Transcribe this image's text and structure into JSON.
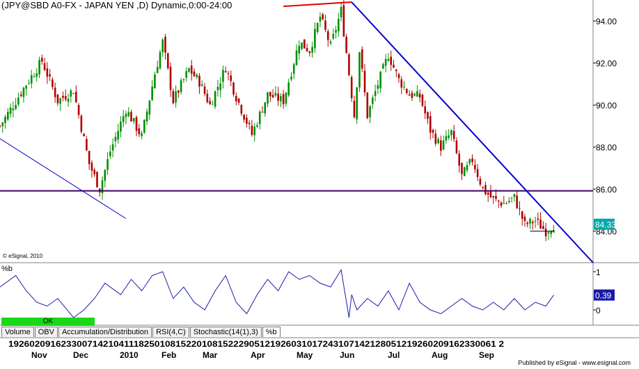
{
  "window": {
    "title": "(JPY@SBD A0-FX - JAPAN YEN  ,D) Dynamic,0:00-24:00"
  },
  "watermark": "© eSignal, 2010",
  "indicator": {
    "label": "%b",
    "ok_button": "OK",
    "tabs": [
      "Volume",
      "OBV",
      "Accumulation/Distribution",
      "RSI(4,C)",
      "Stochastic(14(1),3)",
      "%b"
    ],
    "active_tab": "%b",
    "last_value": "0.39",
    "ticks": [
      "1",
      "0"
    ]
  },
  "footer": "Published by eSignal - www.esignal.com",
  "colors": {
    "up": "#009000",
    "down": "#b00000",
    "trend_lines": "#0000cc",
    "top_line": "#e00000",
    "horizontal_line": "#3b005f",
    "last_price_box": "#00a8a8",
    "indicator_line": "#1a1aaa"
  },
  "chart_data": [
    {
      "type": "candlestick",
      "title": "(JPY@SBD A0-FX - JAPAN YEN  ,D) Dynamic,0:00-24:00",
      "ylim": [
        82.5,
        95.0
      ],
      "yticks": [
        "84.00",
        "86.00",
        "88.00",
        "90.00",
        "92.00",
        "94.00"
      ],
      "last_price": "84.33",
      "x_day_labels": "192602091623300714210411182501081522010815222905121926031017243107142128051219260209162330061 2",
      "x_month_labels": [
        "Nov",
        "Dec",
        "2010",
        "Feb",
        "Mar",
        "Apr",
        "May",
        "Jun",
        "Jul",
        "Aug",
        "Sep"
      ],
      "close_path": [
        [
          0,
          89.0
        ],
        [
          10,
          91.0
        ],
        [
          16,
          92.1
        ],
        [
          22,
          90.2
        ],
        [
          28,
          90.7
        ],
        [
          34,
          87.2
        ],
        [
          38,
          86.0
        ],
        [
          42,
          87.8
        ],
        [
          48,
          89.8
        ],
        [
          54,
          88.5
        ],
        [
          59,
          91.5
        ],
        [
          62,
          93.0
        ],
        [
          66,
          90.2
        ],
        [
          72,
          91.7
        ],
        [
          76,
          91.1
        ],
        [
          80,
          90.0
        ],
        [
          86,
          91.8
        ],
        [
          90,
          90.4
        ],
        [
          96,
          88.6
        ],
        [
          102,
          90.5
        ],
        [
          108,
          90.2
        ],
        [
          114,
          93.0
        ],
        [
          118,
          92.6
        ],
        [
          122,
          94.2
        ],
        [
          126,
          92.8
        ],
        [
          130,
          94.5
        ],
        [
          133,
          91.5
        ],
        [
          135,
          89.5
        ],
        [
          137,
          92.6
        ],
        [
          140,
          89.5
        ],
        [
          144,
          91.0
        ],
        [
          148,
          92.4
        ],
        [
          152,
          91.2
        ],
        [
          156,
          90.5
        ],
        [
          160,
          90.4
        ],
        [
          164,
          88.8
        ],
        [
          168,
          88.0
        ],
        [
          172,
          88.7
        ],
        [
          176,
          86.6
        ],
        [
          180,
          87.4
        ],
        [
          184,
          86.0
        ],
        [
          188,
          85.5
        ],
        [
          192,
          85.3
        ],
        [
          196,
          85.6
        ],
        [
          200,
          84.3
        ],
        [
          204,
          84.5
        ],
        [
          208,
          84.0
        ],
        [
          211,
          84.3
        ]
      ],
      "horizontal_line": 85.92,
      "top_line": {
        "from": [
          108,
          94.7
        ],
        "to": [
          134,
          94.9
        ]
      },
      "trend_line": {
        "from": [
          134,
          94.9
        ],
        "to": [
          226,
          82.5
        ]
      },
      "low_line": {
        "from": [
          0,
          88.4
        ],
        "to": [
          48,
          84.6
        ]
      },
      "support_mark": {
        "from": [
          202,
          84.0
        ],
        "to": [
          211,
          84.0
        ]
      }
    },
    {
      "type": "line",
      "series_name": "%b",
      "ylim": [
        -0.4,
        1.2
      ],
      "yticks": [
        1,
        0
      ],
      "x": [
        0,
        6,
        10,
        14,
        18,
        22,
        28,
        32,
        36,
        40,
        46,
        50,
        54,
        58,
        62,
        66,
        70,
        74,
        78,
        82,
        86,
        90,
        94,
        98,
        102,
        106,
        110,
        114,
        118,
        122,
        126,
        130,
        133,
        134,
        136,
        140,
        144,
        148,
        152,
        156,
        160,
        164,
        168,
        172,
        176,
        180,
        184,
        188,
        192,
        196,
        200,
        204,
        208,
        211
      ],
      "y": [
        0.6,
        0.9,
        0.5,
        0.2,
        0.1,
        0.3,
        -0.2,
        0.0,
        0.3,
        0.7,
        0.4,
        0.8,
        0.5,
        0.9,
        1.0,
        0.3,
        0.6,
        0.2,
        0.0,
        0.5,
        0.9,
        0.2,
        -0.1,
        0.4,
        0.8,
        0.5,
        1.0,
        0.8,
        0.9,
        0.7,
        0.6,
        1.05,
        -0.2,
        0.4,
        0.0,
        0.3,
        0.1,
        0.5,
        0.0,
        0.7,
        0.2,
        0.0,
        -0.1,
        0.1,
        0.3,
        0.1,
        0.0,
        0.2,
        0.0,
        0.3,
        0.0,
        0.2,
        0.1,
        0.39
      ]
    }
  ]
}
